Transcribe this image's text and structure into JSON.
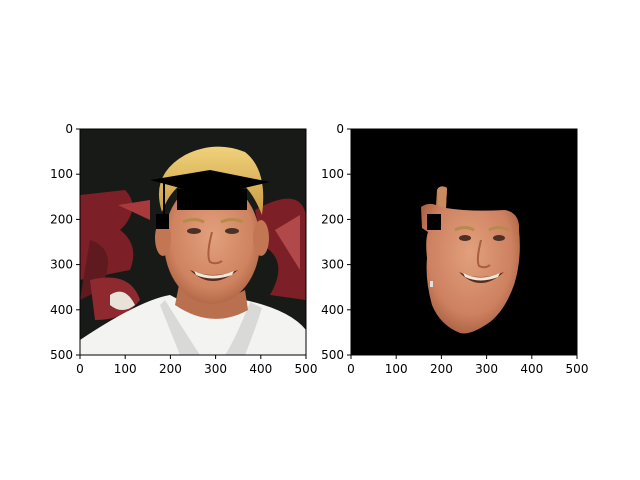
{
  "figure": {
    "background": "#ffffff"
  },
  "chart_data": [
    {
      "type": "image",
      "title": "",
      "xlabel": "",
      "ylabel": "",
      "xlim": [
        0,
        500
      ],
      "ylim": [
        500,
        0
      ],
      "xticks": [
        "0",
        "100",
        "200",
        "300",
        "400",
        "500"
      ],
      "yticks": [
        "0",
        "100",
        "200",
        "300",
        "400",
        "500"
      ],
      "image_content": "photo-face-with-graduation-cap-overlay",
      "colors": {
        "background_dark": "#161816",
        "logo_red": "#7a1f24",
        "hair": "#e2c064",
        "skin": "#d68a66",
        "shirt": "#f4f4f4",
        "cap": "#000000"
      },
      "overlays": [
        {
          "shape": "cap-top",
          "x": [
            150,
            270
          ],
          "y": [
            95,
            135
          ]
        },
        {
          "shape": "cap-band",
          "x": [
            215,
            370
          ],
          "y": [
            130,
            180
          ]
        },
        {
          "shape": "tassel-string",
          "x": [
            180,
            185
          ],
          "y": [
            125,
            200
          ]
        },
        {
          "shape": "tassel",
          "x": [
            165,
            200
          ],
          "y": [
            195,
            225
          ]
        }
      ]
    },
    {
      "type": "image",
      "title": "",
      "xlabel": "",
      "ylabel": "",
      "xlim": [
        0,
        500
      ],
      "ylim": [
        500,
        0
      ],
      "xticks": [
        "0",
        "100",
        "200",
        "300",
        "400",
        "500"
      ],
      "yticks": [
        "0",
        "100",
        "200",
        "300",
        "400",
        "500"
      ],
      "image_content": "segmented-face-on-black",
      "colors": {
        "background": "#000000",
        "skin": "#d3875f",
        "skin_shadow": "#b36a45"
      },
      "overlays": [
        {
          "shape": "square-marker",
          "x": [
            170,
            200
          ],
          "y": [
            190,
            225
          ]
        }
      ]
    }
  ]
}
